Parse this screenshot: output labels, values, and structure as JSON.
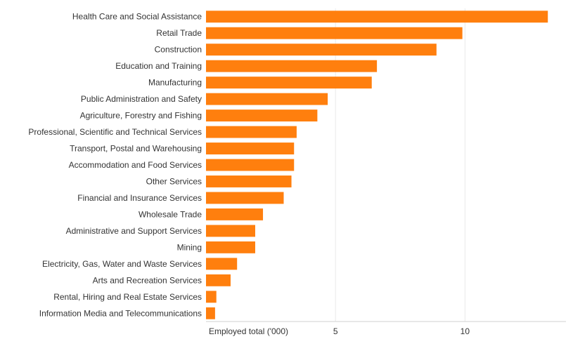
{
  "chart_data": {
    "type": "bar",
    "orientation": "horizontal",
    "categories": [
      "Health Care and Social Assistance",
      "Retail Trade",
      "Construction",
      "Education and Training",
      "Manufacturing",
      "Public Administration and Safety",
      "Agriculture, Forestry and Fishing",
      "Professional, Scientific and Technical Services",
      "Transport, Postal and Warehousing",
      "Accommodation and Food Services",
      "Other Services",
      "Financial and Insurance Services",
      "Wholesale Trade",
      "Administrative and Support Services",
      "Mining",
      "Electricity, Gas, Water and Waste Services",
      "Arts and Recreation Services",
      "Rental, Hiring and Real Estate Services",
      "Information Media and Telecommunications"
    ],
    "values": [
      13.2,
      9.9,
      8.9,
      6.6,
      6.4,
      4.7,
      4.3,
      3.5,
      3.4,
      3.4,
      3.3,
      3.0,
      2.2,
      1.9,
      1.9,
      1.2,
      0.95,
      0.4,
      0.35
    ],
    "xlabel": "Employed total ('000)",
    "xticks": [
      5,
      10
    ],
    "xlim": [
      0,
      13.9
    ],
    "grid": true,
    "bar_color": "#ff7f0e"
  }
}
